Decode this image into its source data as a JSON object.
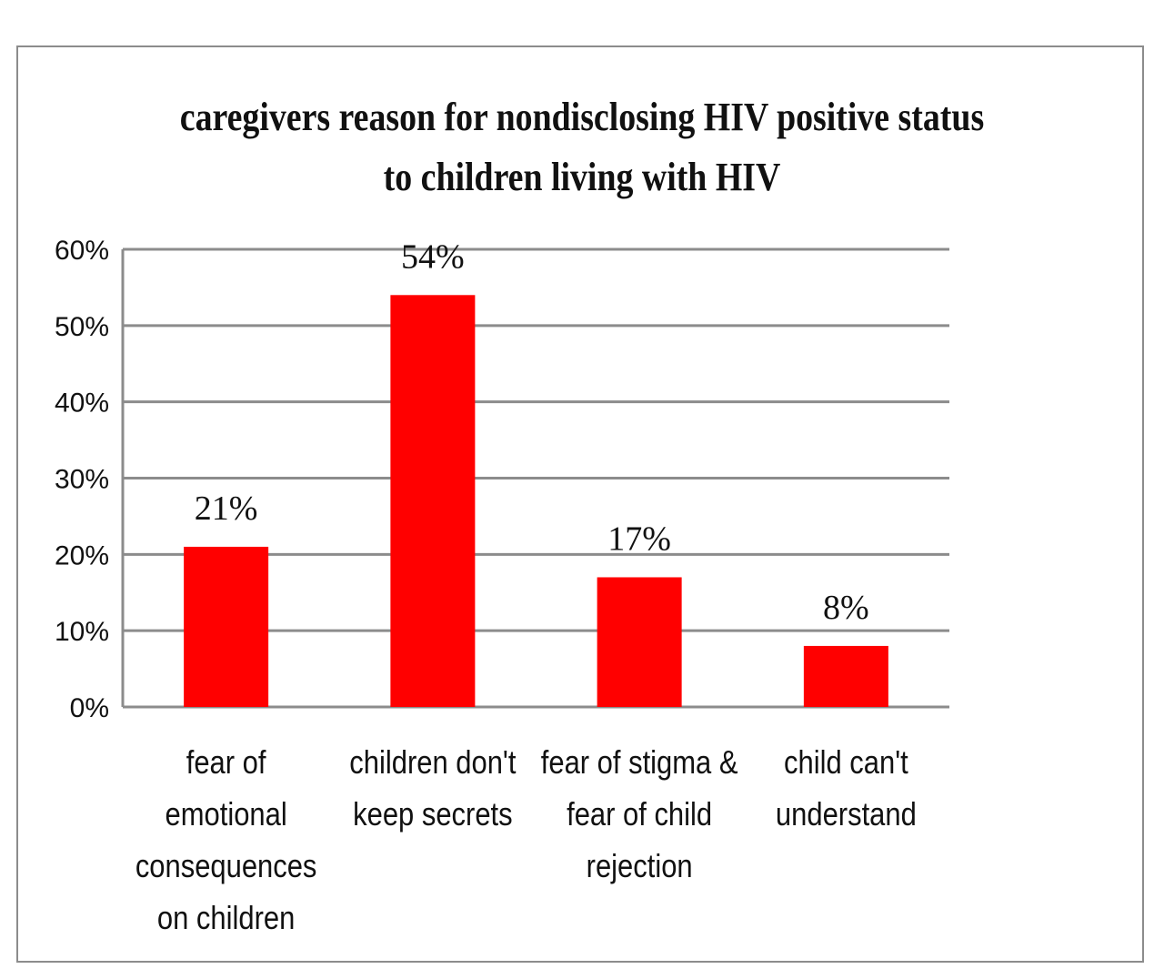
{
  "chart_data": {
    "type": "bar",
    "title_lines": [
      "caregivers reason for nondisclosing HIV positive status",
      "to children living with HIV"
    ],
    "categories": [
      [
        "fear of",
        "emotional",
        "consequences",
        "on children"
      ],
      [
        "children don't",
        "keep secrets"
      ],
      [
        "fear of stigma &",
        "fear of child",
        "rejection"
      ],
      [
        "child can't",
        "understand"
      ]
    ],
    "values": [
      21,
      54,
      17,
      8
    ],
    "data_labels": [
      "21%",
      "54%",
      "17%",
      "8%"
    ],
    "ylim": [
      0,
      60
    ],
    "yticks": [
      0,
      10,
      20,
      30,
      40,
      50,
      60
    ],
    "ytick_labels": [
      "0%",
      "10%",
      "20%",
      "30%",
      "40%",
      "50%",
      "60%"
    ],
    "grid": true,
    "bar_color": "#ff0000",
    "grid_color": "#8c8c8c"
  }
}
